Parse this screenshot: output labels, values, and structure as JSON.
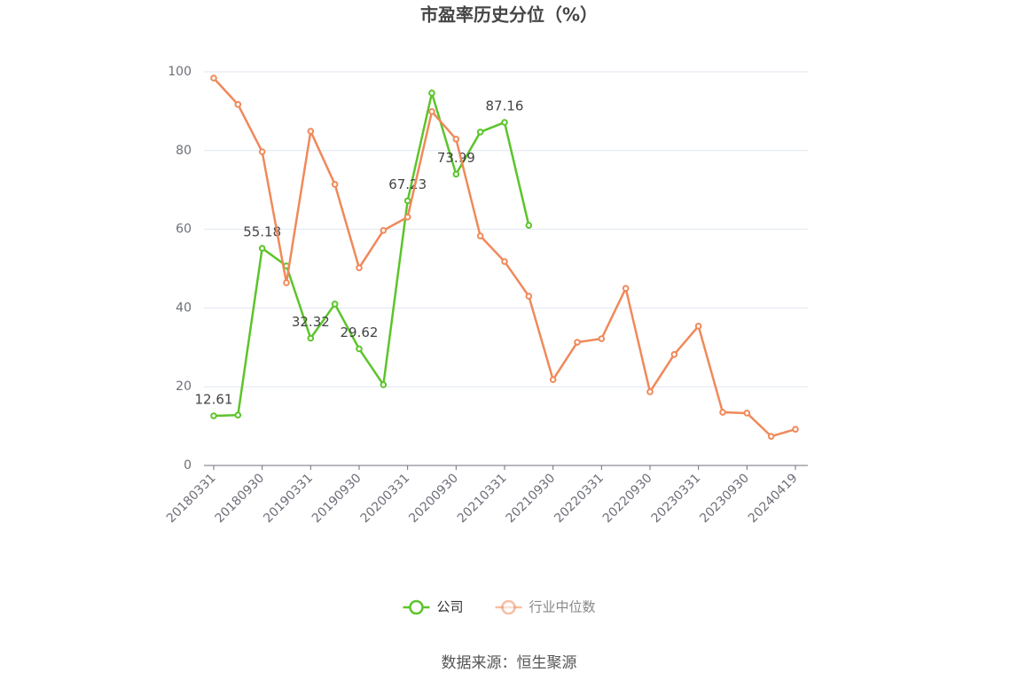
{
  "chart_data": {
    "type": "line",
    "title": "市盈率历史分位（%）",
    "categories": [
      "20180331",
      null,
      "20180930",
      null,
      "20190331",
      null,
      "20190930",
      null,
      "20200331",
      null,
      "20200930",
      null,
      "20210331",
      null,
      "20210930",
      null,
      "20220331",
      null,
      "20220930",
      null,
      "20230331",
      null,
      "20230930",
      null,
      "20240419"
    ],
    "series": [
      {
        "name": "公司",
        "color": "#5cc42a",
        "label_step": 2,
        "values": [
          12.61,
          12.8,
          55.18,
          50.7,
          32.32,
          41.0,
          29.62,
          20.5,
          67.23,
          94.6,
          73.99,
          84.7,
          87.16,
          61.0,
          null,
          null,
          null,
          null,
          null,
          null,
          null,
          null,
          null,
          null,
          null
        ]
      },
      {
        "name": "行业中位数",
        "color": "#f0895a",
        "values": [
          98.4,
          91.7,
          79.7,
          46.4,
          84.9,
          71.4,
          50.2,
          59.7,
          63.1,
          89.9,
          82.9,
          58.3,
          51.8,
          43.0,
          21.8,
          31.3,
          32.2,
          45.0,
          18.7,
          28.2,
          35.4,
          13.5,
          13.3,
          7.4,
          9.2
        ]
      }
    ],
    "ylim": [
      0,
      100
    ],
    "yticks": [
      0,
      20,
      40,
      60,
      80,
      100
    ],
    "grid": true,
    "legend": "bottom",
    "source": "数据来源：恒生聚源"
  }
}
